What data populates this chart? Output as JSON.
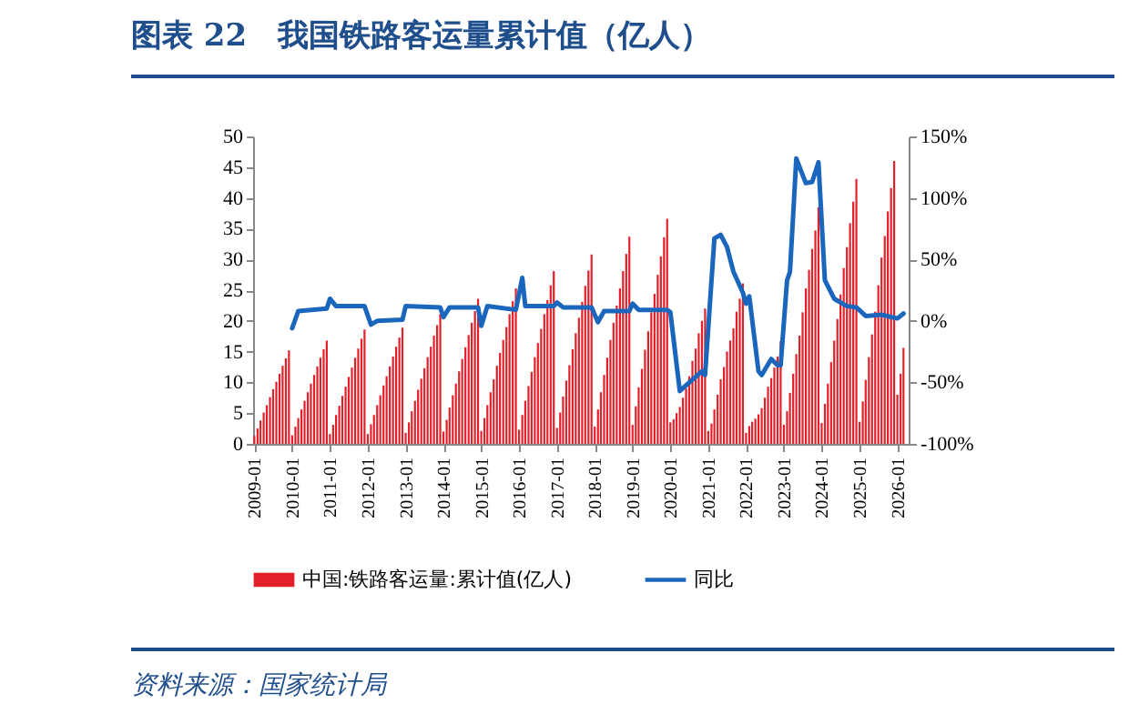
{
  "chart_data": {
    "type": "bar",
    "title": "图表 22　我国铁路客运量累计值（亿人）",
    "x": [
      "2009-01",
      "2009-02",
      "2009-03",
      "2009-04",
      "2009-05",
      "2009-06",
      "2009-07",
      "2009-08",
      "2009-09",
      "2009-10",
      "2009-11",
      "2009-12",
      "2010-01",
      "2010-02",
      "2010-03",
      "2010-04",
      "2010-05",
      "2010-06",
      "2010-07",
      "2010-08",
      "2010-09",
      "2010-10",
      "2010-11",
      "2010-12",
      "2011-01",
      "2011-02",
      "2011-03",
      "2011-04",
      "2011-05",
      "2011-06",
      "2011-07",
      "2011-08",
      "2011-09",
      "2011-10",
      "2011-11",
      "2011-12",
      "2012-01",
      "2012-02",
      "2012-03",
      "2012-04",
      "2012-05",
      "2012-06",
      "2012-07",
      "2012-08",
      "2012-09",
      "2012-10",
      "2012-11",
      "2012-12",
      "2013-01",
      "2013-02",
      "2013-03",
      "2013-04",
      "2013-05",
      "2013-06",
      "2013-07",
      "2013-08",
      "2013-09",
      "2013-10",
      "2013-11",
      "2013-12",
      "2014-01",
      "2014-02",
      "2014-03",
      "2014-04",
      "2014-05",
      "2014-06",
      "2014-07",
      "2014-08",
      "2014-09",
      "2014-10",
      "2014-11",
      "2014-12",
      "2015-01",
      "2015-02",
      "2015-03",
      "2015-04",
      "2015-05",
      "2015-06",
      "2015-07",
      "2015-08",
      "2015-09",
      "2015-10",
      "2015-11",
      "2015-12",
      "2016-01",
      "2016-02",
      "2016-03",
      "2016-04",
      "2016-05",
      "2016-06",
      "2016-07",
      "2016-08",
      "2016-09",
      "2016-10",
      "2016-11",
      "2016-12",
      "2017-01",
      "2017-02",
      "2017-03",
      "2017-04",
      "2017-05",
      "2017-06",
      "2017-07",
      "2017-08",
      "2017-09",
      "2017-10",
      "2017-11",
      "2017-12",
      "2018-01",
      "2018-02",
      "2018-03",
      "2018-04",
      "2018-05",
      "2018-06",
      "2018-07",
      "2018-08",
      "2018-09",
      "2018-10",
      "2018-11",
      "2018-12",
      "2019-01",
      "2019-02",
      "2019-03",
      "2019-04",
      "2019-05",
      "2019-06",
      "2019-07",
      "2019-08",
      "2019-09",
      "2019-10",
      "2019-11",
      "2019-12",
      "2020-01",
      "2020-02",
      "2020-03",
      "2020-04",
      "2020-05",
      "2020-06",
      "2020-07",
      "2020-08",
      "2020-09",
      "2020-10",
      "2020-11",
      "2020-12",
      "2021-01",
      "2021-02",
      "2021-03",
      "2021-04",
      "2021-05",
      "2021-06",
      "2021-07",
      "2021-08",
      "2021-09",
      "2021-10",
      "2021-11",
      "2021-12",
      "2022-01",
      "2022-02",
      "2022-03",
      "2022-04",
      "2022-05",
      "2022-06",
      "2022-07",
      "2022-08",
      "2022-09",
      "2022-10",
      "2022-11",
      "2022-12",
      "2023-01",
      "2023-02",
      "2023-03",
      "2023-04",
      "2023-05",
      "2023-06",
      "2023-07",
      "2023-08",
      "2023-09",
      "2023-10",
      "2023-11",
      "2023-12",
      "2024-01",
      "2024-02",
      "2024-03",
      "2024-04",
      "2024-05",
      "2024-06",
      "2024-07",
      "2024-08",
      "2024-09",
      "2024-10",
      "2024-11",
      "2024-12",
      "2025-01",
      "2025-02",
      "2025-03",
      "2025-04",
      "2025-05",
      "2025-06",
      "2025-07",
      "2025-08",
      "2025-09",
      "2025-10",
      "2025-11",
      "2025-12",
      "2026-01",
      "2026-02",
      "2026-03"
    ],
    "series": [
      {
        "name": "中国:铁路客运量:累计值(亿人)",
        "type": "bar",
        "color": "#e3202a",
        "values": [
          1.3,
          2.5,
          3.8,
          5.1,
          6.3,
          7.6,
          8.9,
          10.1,
          11.4,
          12.7,
          13.9,
          15.2,
          1.4,
          2.8,
          4.2,
          5.6,
          7.0,
          8.4,
          9.8,
          11.2,
          12.6,
          14.0,
          15.4,
          16.8,
          1.6,
          3.1,
          4.7,
          6.2,
          7.8,
          9.3,
          10.9,
          12.4,
          14.0,
          15.5,
          17.1,
          18.6,
          1.6,
          3.2,
          4.7,
          6.3,
          7.9,
          9.5,
          11.0,
          12.6,
          14.2,
          15.8,
          17.3,
          18.9,
          1.8,
          3.5,
          5.3,
          7.0,
          8.8,
          10.6,
          12.3,
          14.1,
          15.8,
          17.6,
          19.3,
          21.1,
          2.0,
          3.9,
          5.9,
          7.9,
          9.8,
          11.8,
          13.8,
          15.7,
          17.7,
          19.7,
          21.6,
          23.6,
          2.1,
          4.2,
          6.3,
          8.4,
          10.5,
          12.7,
          14.8,
          16.9,
          19.0,
          21.1,
          23.2,
          25.3,
          2.3,
          4.7,
          7.0,
          9.4,
          11.7,
          14.1,
          16.4,
          18.7,
          21.1,
          23.4,
          25.8,
          28.1,
          2.6,
          5.1,
          7.7,
          10.3,
          12.8,
          15.4,
          18.0,
          20.5,
          23.1,
          25.7,
          28.2,
          30.8,
          2.8,
          5.6,
          8.4,
          11.2,
          14.0,
          16.9,
          19.7,
          22.5,
          25.3,
          28.1,
          30.9,
          33.7,
          3.1,
          6.1,
          9.2,
          12.2,
          15.3,
          18.3,
          21.4,
          24.4,
          27.5,
          30.5,
          33.6,
          36.6,
          3.5,
          4.0,
          5.0,
          6.0,
          7.5,
          9.0,
          11.0,
          13.5,
          15.5,
          18.0,
          20.0,
          22.0,
          2.1,
          3.3,
          5.6,
          8.0,
          10.5,
          12.5,
          15.0,
          16.8,
          18.8,
          21.5,
          23.6,
          26.1,
          1.8,
          2.9,
          3.6,
          4.1,
          4.8,
          5.8,
          7.5,
          9.3,
          10.7,
          12.4,
          14.2,
          16.7,
          3.1,
          5.3,
          8.3,
          11.4,
          14.6,
          17.6,
          21.4,
          25.3,
          28.3,
          31.7,
          34.7,
          38.5,
          3.4,
          6.5,
          9.8,
          13.3,
          16.8,
          20.3,
          24.3,
          28.6,
          32.0,
          35.9,
          39.4,
          43.1,
          3.6,
          6.9,
          10.4,
          14.1,
          17.8,
          21.5,
          25.8,
          30.3,
          33.8,
          37.8,
          41.6,
          46.0,
          8.0,
          11.4,
          15.6
        ]
      },
      {
        "name": "同比",
        "type": "line",
        "axis": "y2",
        "color": "#1a66bd",
        "x": [
          "2010-01",
          "2010-03",
          "2010-12",
          "2011-01",
          "2011-03",
          "2011-12",
          "2012-02",
          "2012-04",
          "2012-12",
          "2013-01",
          "2013-12",
          "2014-01",
          "2014-03",
          "2014-12",
          "2015-01",
          "2015-03",
          "2015-12",
          "2016-02",
          "2016-03",
          "2016-12",
          "2017-01",
          "2017-03",
          "2017-12",
          "2018-02",
          "2018-04",
          "2018-12",
          "2019-01",
          "2019-03",
          "2019-12",
          "2020-01",
          "2020-04",
          "2020-11",
          "2020-12",
          "2021-03",
          "2021-05",
          "2021-07",
          "2021-09",
          "2021-12",
          "2022-01",
          "2022-02",
          "2022-05",
          "2022-06",
          "2022-09",
          "2022-11",
          "2022-12",
          "2023-02",
          "2023-03",
          "2023-05",
          "2023-08",
          "2023-10",
          "2023-12",
          "2024-02",
          "2024-05",
          "2024-09",
          "2024-12",
          "2025-03",
          "2025-08",
          "2026-01",
          "2026-03"
        ],
        "values": [
          -6,
          8,
          10,
          18,
          12,
          12,
          -3,
          0,
          1,
          12,
          11,
          3,
          11,
          11,
          -4,
          12,
          9,
          35,
          12,
          12,
          15,
          11,
          11,
          -1,
          8,
          8,
          14,
          9,
          9,
          7,
          -57,
          -41,
          -44,
          67,
          70,
          60,
          40,
          23,
          14,
          20,
          -41,
          -44,
          -31,
          -36,
          -36,
          33,
          40,
          132,
          112,
          113,
          129,
          33,
          18,
          12,
          11,
          4,
          5,
          2,
          6
        ]
      }
    ],
    "xlim": [
      "2008-12-20",
      "2026-04-20"
    ],
    "xticks": [
      "2009-01",
      "2010-01",
      "2011-01",
      "2012-01",
      "2013-01",
      "2014-01",
      "2015-01",
      "2016-01",
      "2017-01",
      "2018-01",
      "2019-01",
      "2020-01",
      "2021-01",
      "2022-01",
      "2023-01",
      "2024-01",
      "2025-01",
      "2026-01"
    ],
    "ylim": [
      0,
      50
    ],
    "yticks": [
      0,
      5,
      10,
      15,
      20,
      25,
      30,
      35,
      40,
      45,
      50
    ],
    "y2lim": [
      -100,
      150
    ],
    "y2ticks": [
      {
        "value": -100,
        "label": "-100%"
      },
      {
        "value": -50,
        "label": "-50%"
      },
      {
        "value": 0,
        "label": "0%"
      },
      {
        "value": 50,
        "label": "50%"
      },
      {
        "value": 100,
        "label": "100%"
      },
      {
        "value": 150,
        "label": "150%"
      }
    ],
    "legend": "bottom",
    "annotations": [
      "资料来源：国家统计局"
    ]
  }
}
